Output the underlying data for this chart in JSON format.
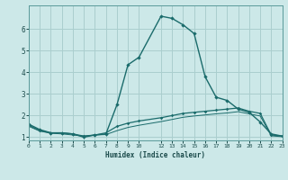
{
  "xlabel": "Humidex (Indice chaleur)",
  "bg_color": "#cce8e8",
  "line_color": "#1a6b6b",
  "grid_color": "#aacece",
  "x_main": [
    0,
    1,
    2,
    3,
    4,
    5,
    6,
    7,
    8,
    9,
    10,
    12,
    13,
    14,
    15,
    16,
    17,
    18,
    19,
    20,
    21,
    22,
    23
  ],
  "y_main": [
    1.6,
    1.35,
    1.2,
    1.2,
    1.15,
    1.0,
    1.1,
    1.15,
    2.5,
    4.35,
    4.7,
    6.6,
    6.5,
    6.2,
    5.8,
    3.8,
    2.85,
    2.7,
    2.3,
    2.15,
    1.7,
    1.15,
    1.05
  ],
  "x_line2": [
    0,
    1,
    2,
    3,
    4,
    5,
    6,
    7,
    8,
    9,
    10,
    12,
    13,
    14,
    15,
    16,
    17,
    18,
    19,
    20,
    21,
    22,
    23
  ],
  "y_line2": [
    1.55,
    1.3,
    1.2,
    1.2,
    1.15,
    1.05,
    1.1,
    1.2,
    1.5,
    1.65,
    1.75,
    1.9,
    2.0,
    2.1,
    2.15,
    2.2,
    2.25,
    2.3,
    2.35,
    2.2,
    2.1,
    1.1,
    1.05
  ],
  "x_line3": [
    0,
    1,
    2,
    3,
    4,
    5,
    6,
    7,
    8,
    9,
    10,
    12,
    13,
    14,
    15,
    16,
    17,
    18,
    19,
    20,
    21,
    22,
    23
  ],
  "y_line3": [
    1.5,
    1.28,
    1.18,
    1.15,
    1.1,
    1.05,
    1.1,
    1.12,
    1.3,
    1.45,
    1.55,
    1.72,
    1.82,
    1.92,
    1.98,
    2.03,
    2.08,
    2.12,
    2.18,
    2.08,
    1.98,
    1.06,
    1.02
  ],
  "xlim": [
    0,
    23
  ],
  "ylim": [
    0.85,
    7.1
  ],
  "yticks": [
    1,
    2,
    3,
    4,
    5,
    6
  ],
  "xticks": [
    0,
    1,
    2,
    3,
    4,
    5,
    6,
    7,
    8,
    9,
    10,
    12,
    13,
    14,
    15,
    16,
    17,
    18,
    19,
    20,
    21,
    22,
    23
  ],
  "xtick_labels": [
    "0",
    "1",
    "2",
    "3",
    "4",
    "5",
    "6",
    "7",
    "8",
    "9",
    "10",
    "12",
    "13",
    "14",
    "15",
    "16",
    "17",
    "18",
    "19",
    "20",
    "21",
    "22",
    "23"
  ]
}
